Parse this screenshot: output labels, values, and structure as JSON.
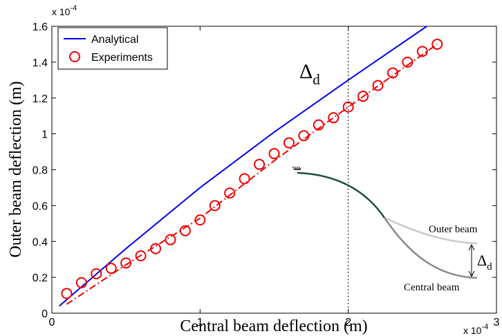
{
  "chart_data": {
    "type": "line",
    "x_label": "Central beam deflection (m)",
    "y_label": "Outer beam deflection (m)",
    "x_exponent": {
      "base": "x 10",
      "exp": "-4"
    },
    "y_exponent": {
      "base": "x 10",
      "exp": "-4"
    },
    "xlim": [
      0,
      3
    ],
    "ylim": [
      0,
      1.6
    ],
    "xticks": [
      0,
      1,
      2,
      3
    ],
    "yticks": [
      0,
      0.2,
      0.4,
      0.6,
      0.8,
      1,
      1.2,
      1.4,
      1.6
    ],
    "x_reference_line": 2,
    "legend": "upper left",
    "series": [
      {
        "name": "Analytical",
        "color": "#0000ee",
        "linestyle": "solid",
        "x": [
          0.05,
          0.5,
          1,
          1.5,
          2,
          2.53
        ],
        "values": [
          0.04,
          0.36,
          0.7,
          1.01,
          1.3,
          1.6
        ]
      },
      {
        "name": "Experiments",
        "color": "#ee0000",
        "marker": "circle",
        "x": [
          0.1,
          0.2,
          0.3,
          0.4,
          0.5,
          0.6,
          0.7,
          0.8,
          0.9,
          1,
          1.1,
          1.2,
          1.3,
          1.4,
          1.5,
          1.6,
          1.7,
          1.8,
          1.9,
          2,
          2.1,
          2.2,
          2.3,
          2.4,
          2.5,
          2.6
        ],
        "values": [
          0.11,
          0.17,
          0.22,
          0.25,
          0.28,
          0.32,
          0.36,
          0.41,
          0.46,
          0.52,
          0.6,
          0.67,
          0.75,
          0.83,
          0.89,
          0.95,
          0.99,
          1.05,
          1.09,
          1.15,
          1.21,
          1.27,
          1.34,
          1.4,
          1.46,
          1.5
        ]
      },
      {
        "color": "#ee0000",
        "linestyle": "dashdot",
        "x": [
          0.1,
          0.5,
          1,
          1.5,
          2,
          2.6
        ],
        "values": [
          0.05,
          0.27,
          0.53,
          0.85,
          1.15,
          1.5
        ]
      }
    ],
    "annotations": [
      {
        "text": "Δ",
        "sub": "d"
      }
    ],
    "inset": {
      "outer_label": "Outer beam",
      "central_label": "Central beam",
      "gap_symbol": "Δ",
      "gap_sub": "d"
    }
  }
}
